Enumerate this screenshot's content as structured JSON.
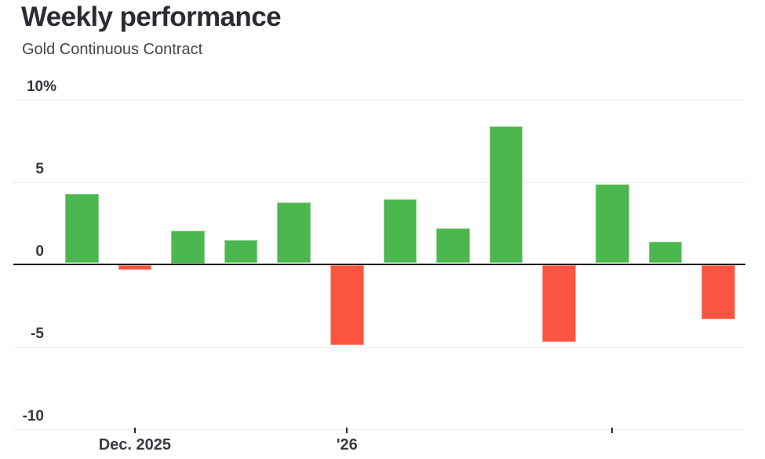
{
  "header": {
    "title": "Weekly performance",
    "subtitle": "Gold Continuous Contract"
  },
  "chart_data": {
    "type": "bar",
    "title": "Weekly performance",
    "subtitle": "Gold Continuous Contract",
    "unit": "%",
    "values": [
      4.2,
      -0.3,
      2.0,
      1.4,
      3.7,
      -4.9,
      3.9,
      2.1,
      8.3,
      -4.7,
      4.8,
      1.3,
      -3.3
    ],
    "y_ticks": [
      {
        "value": 10,
        "label": "10%"
      },
      {
        "value": 5,
        "label": "5"
      },
      {
        "value": 0,
        "label": "0"
      },
      {
        "value": -5,
        "label": "-5"
      },
      {
        "value": -10,
        "label": "-10"
      }
    ],
    "ylim": [
      -10,
      10
    ],
    "x_ticks": [
      {
        "bar_index": 1,
        "label": "Dec. 2025"
      },
      {
        "bar_index": 5,
        "label": "'26"
      },
      {
        "bar_index": 10,
        "label": ""
      }
    ],
    "grid": "horizontal",
    "colors": {
      "positive": "#4cb64f",
      "positive_edge": "#8fd391",
      "negative": "#fb5441",
      "negative_edge": "#fda396",
      "zero_line": "#111111",
      "gridline": "#ececec",
      "title_text": "#2b2b33",
      "subtitle_text": "#45454b",
      "axis_text": "#36363d"
    }
  }
}
